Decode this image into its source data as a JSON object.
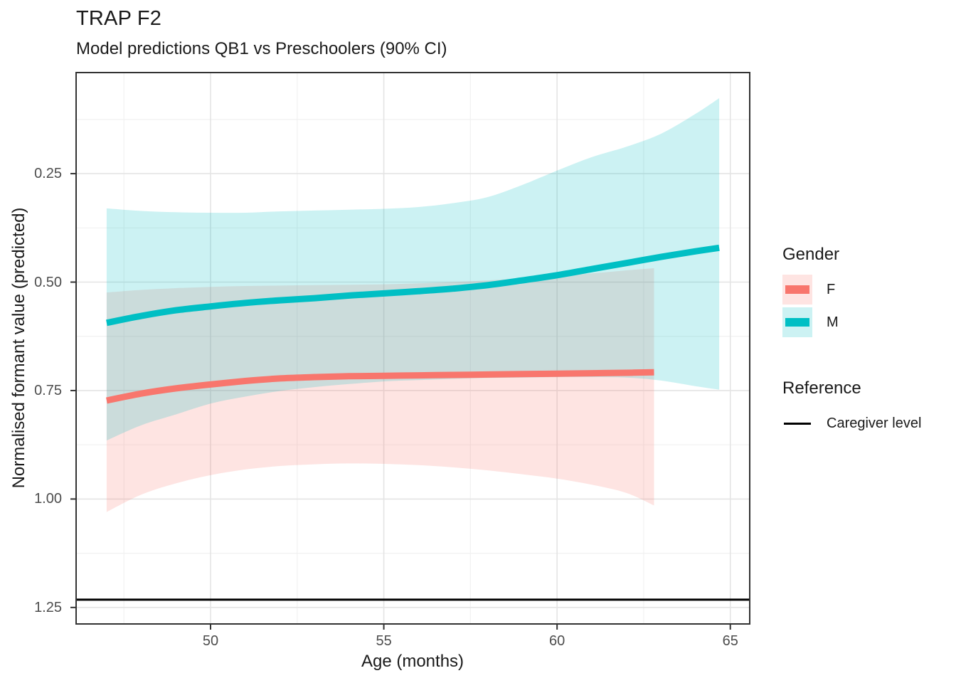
{
  "header": {
    "title": "TRAP F2",
    "subtitle": "Model predictions QB1 vs Preschoolers (90% CI)"
  },
  "axes": {
    "x_title": "Age (months)",
    "y_title": "Normalised formant value (predicted)"
  },
  "legend": {
    "gender_title": "Gender",
    "items": [
      {
        "label": "F",
        "color": "#F8766D"
      },
      {
        "label": "M",
        "color": "#00BFC4"
      }
    ],
    "reference_title": "Reference",
    "reference_label": "Caregiver level"
  },
  "chart_data": {
    "type": "line",
    "title": "TRAP F2",
    "subtitle": "Model predictions QB1 vs Preschoolers (90% CI)",
    "xlabel": "Age (months)",
    "ylabel": "Normalised formant value (predicted)",
    "x_domain": [
      46.12,
      65.56
    ],
    "y_domain_top_to_bottom": [
      0.017,
      1.288
    ],
    "y_reversed": true,
    "x_ticks": [
      50,
      55,
      60,
      65
    ],
    "x_minor_ticks": [
      47.5,
      52.5,
      57.5,
      62.5
    ],
    "y_ticks": [
      0.25,
      0.5,
      0.75,
      1.0,
      1.25
    ],
    "y_tick_labels": [
      "0.25",
      "0.50",
      "0.75",
      "1.00",
      "1.25"
    ],
    "y_minor_ticks": [
      0.125,
      0.375,
      0.625,
      0.875,
      1.125
    ],
    "ribbon_alpha": 0.2,
    "series": [
      {
        "name": "F",
        "color": "#F8766D",
        "x": [
          47,
          48,
          49,
          50,
          51,
          52,
          53,
          54,
          55,
          56,
          57,
          58,
          59,
          60,
          61,
          62,
          62.8
        ],
        "y": [
          0.773,
          0.757,
          0.745,
          0.736,
          0.728,
          0.722,
          0.719,
          0.717,
          0.716,
          0.715,
          0.714,
          0.713,
          0.712,
          0.711,
          0.71,
          0.709,
          0.708
        ],
        "upper": [
          0.524,
          0.518,
          0.514,
          0.511,
          0.509,
          0.508,
          0.507,
          0.506,
          0.505,
          0.503,
          0.5,
          0.496,
          0.491,
          0.486,
          0.48,
          0.473,
          0.468
        ],
        "lower": [
          1.03,
          0.99,
          0.964,
          0.945,
          0.932,
          0.924,
          0.92,
          0.918,
          0.919,
          0.922,
          0.927,
          0.934,
          0.943,
          0.953,
          0.967,
          0.986,
          1.015
        ]
      },
      {
        "name": "M",
        "color": "#00BFC4",
        "x": [
          47,
          48,
          49,
          50,
          51,
          52,
          53,
          54,
          55,
          56,
          57,
          58,
          59,
          60,
          61,
          62,
          63,
          64,
          64.68
        ],
        "y": [
          0.594,
          0.578,
          0.565,
          0.556,
          0.548,
          0.542,
          0.537,
          0.531,
          0.526,
          0.521,
          0.515,
          0.507,
          0.496,
          0.484,
          0.47,
          0.456,
          0.442,
          0.429,
          0.421
        ],
        "upper": [
          0.33,
          0.336,
          0.339,
          0.34,
          0.34,
          0.337,
          0.335,
          0.333,
          0.331,
          0.327,
          0.318,
          0.304,
          0.276,
          0.243,
          0.212,
          0.188,
          0.158,
          0.112,
          0.076
        ],
        "lower": [
          0.865,
          0.83,
          0.805,
          0.78,
          0.764,
          0.751,
          0.742,
          0.735,
          0.729,
          0.726,
          0.723,
          0.721,
          0.72,
          0.719,
          0.719,
          0.72,
          0.727,
          0.74,
          0.748
        ]
      }
    ],
    "reference_line": {
      "label": "Caregiver level",
      "value": 1.232,
      "color": "#000000"
    },
    "style": {
      "grid_major_color": "#E4E4E4",
      "grid_minor_color": "#F1F1F1",
      "panel_border_color": "#333333",
      "tick_mark_color": "#333333",
      "tick_text_color": "#4d4d4d",
      "line_width": 9
    }
  }
}
